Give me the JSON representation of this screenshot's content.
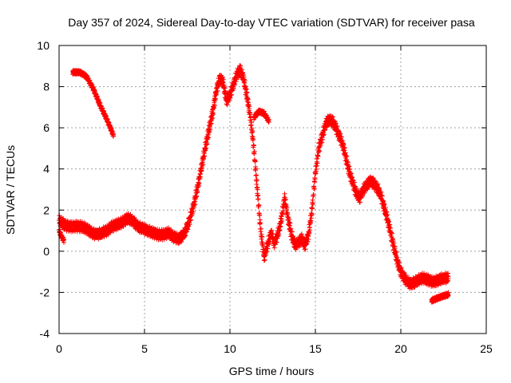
{
  "chart_data": {
    "type": "scatter",
    "title": "Day 357 of 2024, Sidereal Day-to-day VTEC variation (SDTVAR) for receiver pasa",
    "xlabel": "GPS time / hours",
    "ylabel": "SDTVAR / TECUs",
    "xlim": [
      0,
      25
    ],
    "ylim": [
      -4,
      10
    ],
    "x_ticks": [
      0,
      5,
      10,
      15,
      20,
      25
    ],
    "y_ticks": [
      -4,
      -2,
      0,
      2,
      4,
      6,
      8,
      10
    ],
    "x_tick_labels": [
      "0",
      "5",
      "10",
      "15",
      "20",
      "25"
    ],
    "y_tick_labels": [
      "-4",
      "-2",
      "0",
      "2",
      "4",
      "6",
      "8",
      "10"
    ],
    "grid": true,
    "marker": "+",
    "series_color": "#ff0000",
    "series": [
      {
        "name": "main",
        "band": 0.25,
        "x": [
          0.0,
          0.15,
          0.3,
          0.5,
          0.8,
          1.0,
          1.3,
          1.6,
          1.9,
          2.2,
          2.5,
          2.8,
          3.1,
          3.4,
          3.7,
          4.0,
          4.3,
          4.6,
          4.9,
          5.2,
          5.5,
          5.8,
          6.1,
          6.4,
          6.7,
          7.0,
          7.3,
          7.6,
          7.9,
          8.2,
          8.5,
          8.8,
          9.0,
          9.2,
          9.4,
          9.6,
          9.8,
          10.0,
          10.2,
          10.4,
          10.6,
          10.8,
          11.0,
          11.2,
          11.4,
          11.6,
          11.8,
          12.0,
          12.2,
          12.4,
          12.6,
          12.8,
          13.0,
          13.2,
          13.4,
          13.6,
          13.8,
          14.0,
          14.2,
          14.4,
          14.6,
          14.8,
          15.0,
          15.2,
          15.4,
          15.6,
          15.8,
          16.0,
          16.2,
          16.4,
          16.6,
          16.8,
          17.0,
          17.2,
          17.4,
          17.6,
          17.8,
          18.0,
          18.2,
          18.4,
          18.6,
          18.8,
          19.0,
          19.2,
          19.4,
          19.6,
          19.8,
          20.0,
          20.2,
          20.4,
          20.6,
          20.8,
          21.0,
          21.3,
          21.6,
          21.9,
          22.2,
          22.5,
          22.8
        ],
        "y": [
          1.5,
          1.4,
          1.3,
          1.2,
          1.2,
          1.2,
          1.2,
          1.1,
          0.9,
          0.8,
          0.9,
          1.0,
          1.2,
          1.3,
          1.4,
          1.6,
          1.5,
          1.2,
          1.1,
          1.0,
          0.9,
          0.8,
          0.8,
          0.9,
          0.7,
          0.6,
          0.8,
          1.4,
          2.3,
          3.5,
          4.8,
          6.0,
          6.8,
          7.8,
          8.4,
          8.2,
          7.3,
          7.6,
          8.1,
          8.6,
          8.8,
          8.4,
          7.5,
          6.5,
          5.0,
          3.0,
          1.0,
          -0.3,
          0.3,
          0.9,
          0.4,
          0.8,
          1.5,
          2.6,
          1.6,
          0.8,
          0.3,
          0.4,
          0.6,
          0.3,
          0.8,
          2.0,
          3.8,
          5.0,
          5.6,
          6.2,
          6.4,
          6.3,
          6.0,
          5.6,
          5.2,
          4.5,
          3.8,
          3.3,
          2.8,
          2.6,
          3.0,
          3.2,
          3.4,
          3.3,
          3.1,
          2.8,
          2.2,
          1.6,
          0.9,
          0.2,
          -0.5,
          -1.0,
          -1.3,
          -1.5,
          -1.6,
          -1.5,
          -1.4,
          -1.3,
          -1.4,
          -1.5,
          -1.4,
          -1.3,
          -1.3
        ]
      },
      {
        "name": "early-high",
        "band": 0.1,
        "x": [
          0.8,
          1.2,
          1.6,
          2.0,
          2.4,
          2.8,
          3.2
        ],
        "y": [
          8.7,
          8.7,
          8.5,
          7.9,
          7.1,
          6.4,
          5.6
        ]
      },
      {
        "name": "early-low",
        "band": 0.1,
        "x": [
          0.0,
          0.15,
          0.3
        ],
        "y": [
          1.0,
          0.7,
          0.5
        ]
      },
      {
        "name": "mid-gap",
        "band": 0.1,
        "x": [
          11.4,
          11.7,
          12.0,
          12.3
        ],
        "y": [
          6.5,
          6.8,
          6.7,
          6.3
        ]
      },
      {
        "name": "late-low",
        "band": 0.1,
        "x": [
          21.8,
          22.1,
          22.4,
          22.8
        ],
        "y": [
          -2.4,
          -2.3,
          -2.2,
          -2.1
        ]
      }
    ]
  }
}
